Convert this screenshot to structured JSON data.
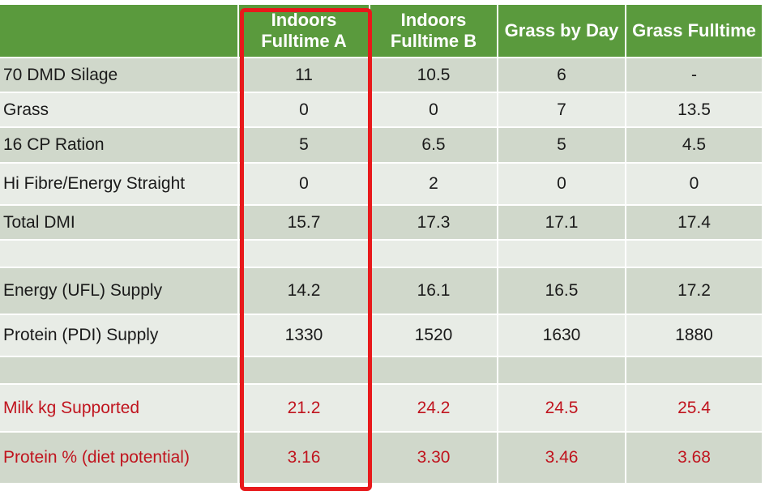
{
  "table": {
    "headers": [
      "",
      "Indoors Fulltime A",
      "Indoors Fulltime B",
      "Grass by Day",
      "Grass Fulltime"
    ],
    "rows": [
      {
        "label": "70 DMD Silage",
        "values": [
          "11",
          "10.5",
          "6",
          "-"
        ]
      },
      {
        "label": "Grass",
        "values": [
          "0",
          "0",
          "7",
          "13.5"
        ]
      },
      {
        "label": "16 CP Ration",
        "values": [
          "5",
          "6.5",
          "5",
          "4.5"
        ]
      },
      {
        "label": "Hi Fibre/Energy Straight",
        "values": [
          "0",
          "2",
          "0",
          "0"
        ]
      },
      {
        "label": "Total DMI",
        "values": [
          "15.7",
          "17.3",
          "17.1",
          "17.4"
        ]
      },
      {
        "label": "",
        "values": [
          "",
          "",
          "",
          ""
        ]
      },
      {
        "label": "Energy (UFL) Supply",
        "values": [
          "14.2",
          "16.1",
          "16.5",
          "17.2"
        ]
      },
      {
        "label": "Protein (PDI) Supply",
        "values": [
          "1330",
          "1520",
          "1630",
          "1880"
        ]
      },
      {
        "label": "",
        "values": [
          "",
          "",
          "",
          ""
        ]
      },
      {
        "label": "Milk kg Supported",
        "values": [
          "21.2",
          "24.2",
          "24.5",
          "25.4"
        ]
      },
      {
        "label": "Protein % (diet potential)",
        "values": [
          "3.16",
          "3.30",
          "3.46",
          "3.68"
        ]
      }
    ]
  },
  "colors": {
    "header_bg": "#5a9a3d",
    "row_dark": "#d0d8cb",
    "row_light": "#e8ece6",
    "highlight_red": "#e8191b",
    "result_text_red": "#c0141e"
  }
}
